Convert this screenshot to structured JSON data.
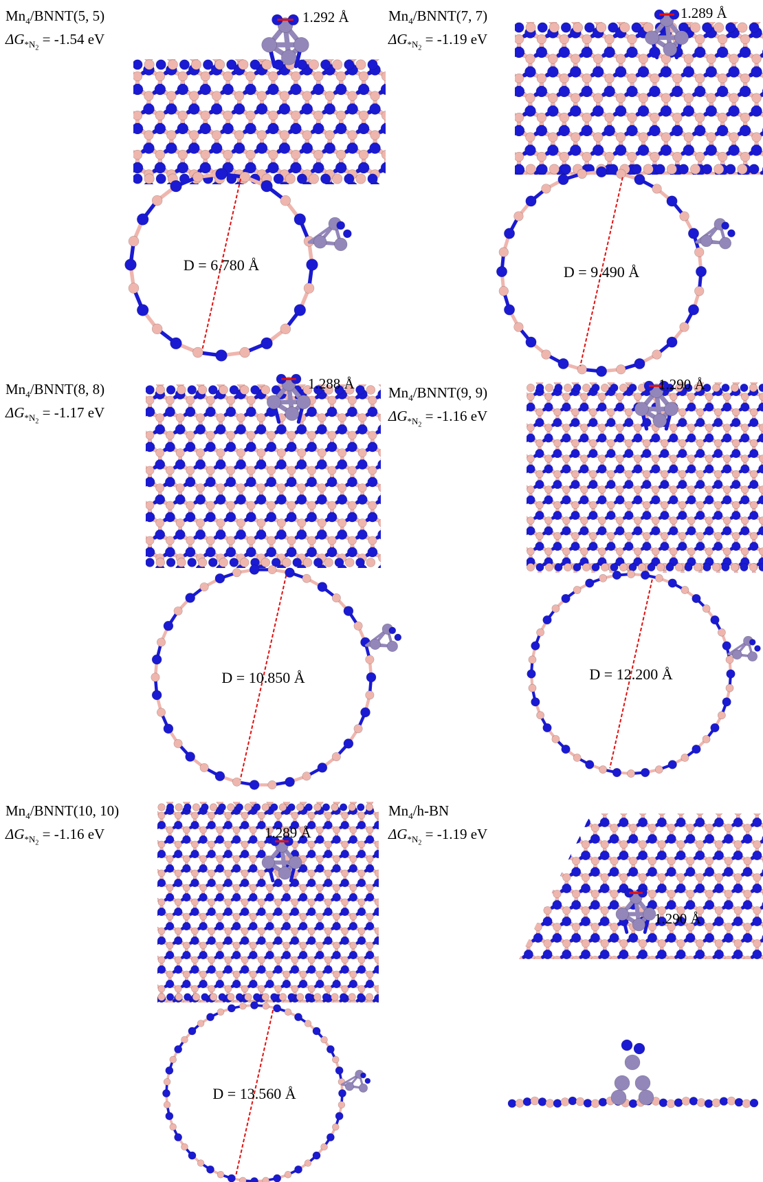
{
  "colors": {
    "nitrogen": "#1a1ad2",
    "boron": "#efb6ae",
    "manganese": "#9386b9",
    "bond_highlight": "#e01010",
    "diameter_line": "#e01010",
    "background": "#ffffff"
  },
  "panels": [
    {
      "system_prefix": "Mn",
      "system_sub": "4",
      "system_suffix": "/BNNT(5, 5)",
      "dg_symbol": "ΔG",
      "dg_sub_star": "*N",
      "dg_sub_2": "2",
      "dg_value": " = -1.54 eV",
      "bond_length": "1.292 Å",
      "diameter": "D = 6.780 Å"
    },
    {
      "system_prefix": "Mn",
      "system_sub": "4",
      "system_suffix": "/BNNT(7, 7)",
      "dg_symbol": "ΔG",
      "dg_sub_star": "*N",
      "dg_sub_2": "2",
      "dg_value": " = -1.19 eV",
      "bond_length": "1.289 Å",
      "diameter": "D = 9.490 Å"
    },
    {
      "system_prefix": "Mn",
      "system_sub": "4",
      "system_suffix": "/BNNT(8, 8)",
      "dg_symbol": "ΔG",
      "dg_sub_star": "*N",
      "dg_sub_2": "2",
      "dg_value": " = -1.17 eV",
      "bond_length": "1.288 Å",
      "diameter": "D = 10.850 Å"
    },
    {
      "system_prefix": "Mn",
      "system_sub": "4",
      "system_suffix": "/BNNT(9, 9)",
      "dg_symbol": "ΔG",
      "dg_sub_star": "*N",
      "dg_sub_2": "2",
      "dg_value": " = -1.16 eV",
      "bond_length": "1.290 Å",
      "diameter": "D = 12.200 Å"
    },
    {
      "system_prefix": "Mn",
      "system_sub": "4",
      "system_suffix": "/BNNT(10, 10)",
      "dg_symbol": "ΔG",
      "dg_sub_star": "*N",
      "dg_sub_2": "2",
      "dg_value": " = -1.16 eV",
      "bond_length": "1.289 Å",
      "diameter": "D = 13.560 Å"
    },
    {
      "system_prefix": "Mn",
      "system_sub": "4",
      "system_suffix": "/h-BN",
      "dg_symbol": "ΔG",
      "dg_sub_star": "*N",
      "dg_sub_2": "2",
      "dg_value": " = -1.19 eV",
      "bond_length": "1.290 Å",
      "diameter": ""
    }
  ]
}
